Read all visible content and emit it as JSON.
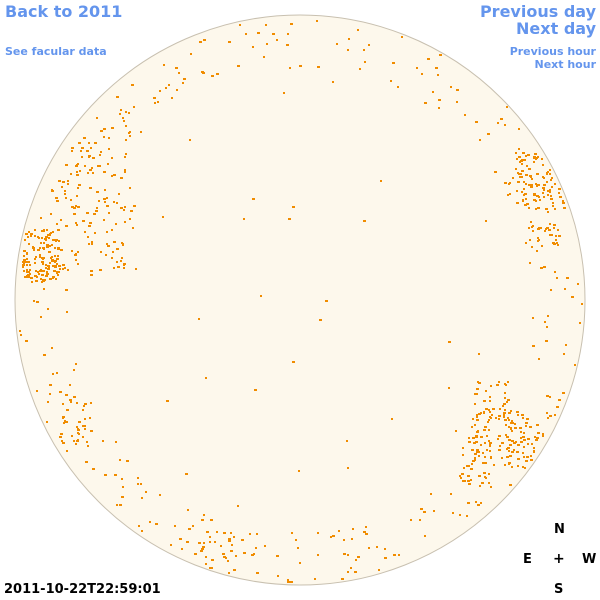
{
  "nav": {
    "back_label": "Back to 2011",
    "facular_label": "See facular data",
    "prev_day_label": "Previous day",
    "next_day_label": "Next day",
    "prev_hour_label": "Previous hour",
    "next_hour_label": "Next hour"
  },
  "compass": {
    "north": "N",
    "east": "E",
    "center": "+",
    "west": "W",
    "south": "S"
  },
  "timestamp": "2011-10-22T22:59:01",
  "colors": {
    "accent": "#6495ed",
    "disk_fill": "#fdf8ec",
    "disk_edge": "#c8c0b0",
    "facula": "#f08c00"
  }
}
